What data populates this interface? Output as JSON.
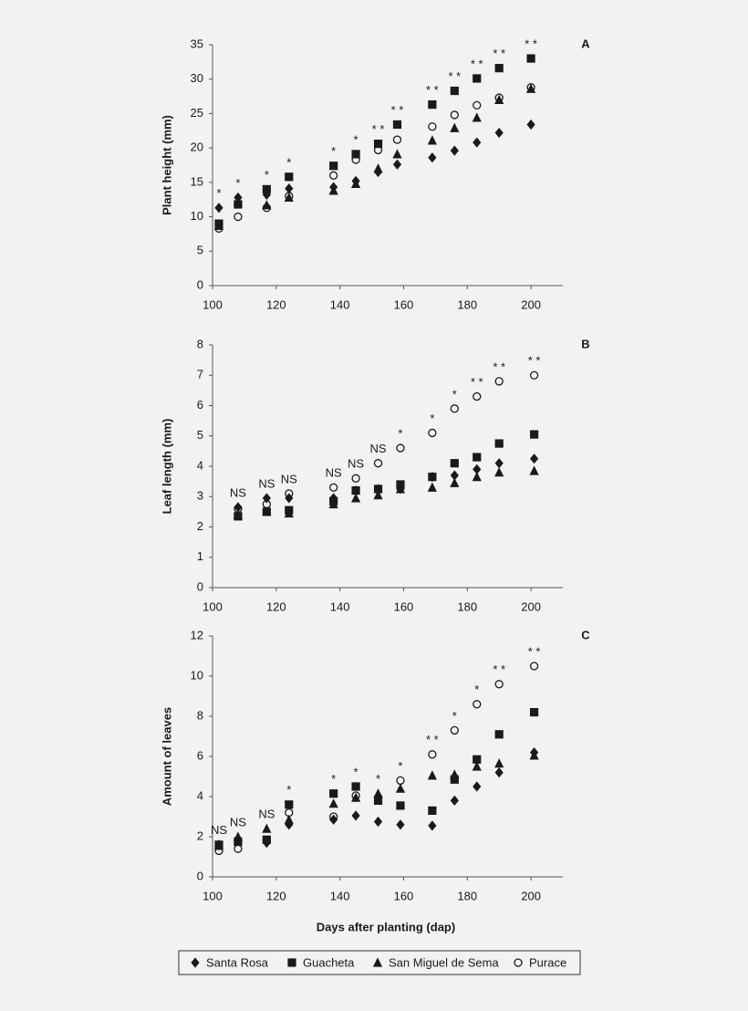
{
  "chart_data": [
    {
      "type": "scatter",
      "panel_label": "A",
      "ylabel": "Plant height (mm)",
      "x": [
        102,
        108,
        117,
        124,
        138,
        145,
        152,
        158,
        169,
        176,
        183,
        190,
        200
      ],
      "xlim": [
        100,
        210
      ],
      "xticks": [
        100,
        120,
        140,
        160,
        180,
        200
      ],
      "ylim": [
        0,
        35
      ],
      "yticks": [
        0,
        5,
        10,
        15,
        20,
        25,
        30,
        35
      ],
      "annotations": [
        "*",
        "*",
        "*",
        "*",
        "*",
        "*",
        "* *",
        "* *",
        "* *",
        "* *",
        "* *",
        "* *",
        "* *"
      ],
      "series": [
        {
          "name": "Santa Rosa",
          "marker": "diamond",
          "color": "#1a1a1a",
          "values": [
            11.3,
            12.8,
            13.2,
            14.1,
            14.3,
            15.2,
            16.5,
            17.6,
            18.6,
            19.6,
            20.8,
            22.2,
            23.4
          ]
        },
        {
          "name": "Guacheta",
          "marker": "square",
          "color": "#1a1a1a",
          "values": [
            9.0,
            11.8,
            14.0,
            15.8,
            17.4,
            19.1,
            20.6,
            23.4,
            26.3,
            28.3,
            30.1,
            31.6,
            33.0
          ]
        },
        {
          "name": "San Miguel de Sema",
          "marker": "triangle",
          "color": "#1a1a1a",
          "values": [
            8.7,
            12.3,
            11.7,
            12.8,
            13.8,
            14.8,
            17.0,
            19.1,
            21.1,
            22.9,
            24.4,
            27.0,
            28.6
          ]
        },
        {
          "name": "Purace",
          "marker": "circle",
          "color": "#1a1a1a",
          "values": [
            8.3,
            10.0,
            11.3,
            13.0,
            16.0,
            18.3,
            19.7,
            21.2,
            23.1,
            24.8,
            26.2,
            27.3,
            28.8
          ]
        }
      ]
    },
    {
      "type": "scatter",
      "panel_label": "B",
      "ylabel": "Leaf length (mm)",
      "x": [
        108,
        117,
        124,
        138,
        145,
        152,
        159,
        169,
        176,
        183,
        190,
        201
      ],
      "xlim": [
        100,
        210
      ],
      "xticks": [
        100,
        120,
        140,
        160,
        180,
        200
      ],
      "ylim": [
        0,
        8
      ],
      "yticks": [
        0,
        1,
        2,
        3,
        4,
        5,
        6,
        7,
        8
      ],
      "annotations": [
        "NS",
        "NS",
        "NS",
        "NS",
        "NS",
        "NS",
        "*",
        "*",
        "*",
        "* *",
        "* *",
        "* *"
      ],
      "series": [
        {
          "name": "Santa Rosa",
          "marker": "diamond",
          "color": "#1a1a1a",
          "values": [
            2.65,
            2.95,
            2.95,
            2.95,
            3.2,
            3.25,
            3.25,
            3.65,
            3.7,
            3.9,
            4.1,
            4.25
          ]
        },
        {
          "name": "Guacheta",
          "marker": "square",
          "color": "#1a1a1a",
          "values": [
            2.35,
            2.5,
            2.55,
            2.85,
            3.2,
            3.25,
            3.4,
            3.65,
            4.1,
            4.3,
            4.75,
            5.05
          ]
        },
        {
          "name": "San Miguel de Sema",
          "marker": "triangle",
          "color": "#1a1a1a",
          "values": [
            2.4,
            2.5,
            2.45,
            2.75,
            2.95,
            3.05,
            3.25,
            3.3,
            3.45,
            3.65,
            3.8,
            3.85
          ]
        },
        {
          "name": "Purace",
          "marker": "circle",
          "color": "#1a1a1a",
          "values": [
            2.6,
            2.75,
            3.1,
            3.3,
            3.6,
            4.1,
            4.6,
            5.1,
            5.9,
            6.3,
            6.8,
            7.0
          ]
        }
      ]
    },
    {
      "type": "scatter",
      "panel_label": "C",
      "ylabel": "Amount of leaves",
      "xlabel": "Days after planting (dap)",
      "x": [
        102,
        108,
        117,
        124,
        138,
        145,
        152,
        159,
        169,
        176,
        183,
        190,
        201
      ],
      "xlim": [
        100,
        210
      ],
      "xticks": [
        100,
        120,
        140,
        160,
        180,
        200
      ],
      "ylim": [
        0,
        12
      ],
      "yticks": [
        0,
        2,
        4,
        6,
        8,
        10,
        12
      ],
      "annotations": [
        "NS",
        "NS",
        "NS",
        "*",
        "*",
        "*",
        "*",
        "*",
        "* *",
        "*",
        "*",
        "* *",
        "* *"
      ],
      "series": [
        {
          "name": "Santa Rosa",
          "marker": "diamond",
          "color": "#1a1a1a",
          "values": [
            1.6,
            1.9,
            1.7,
            2.6,
            2.85,
            3.05,
            2.75,
            2.6,
            2.55,
            3.8,
            4.5,
            5.2,
            6.2
          ]
        },
        {
          "name": "Guacheta",
          "marker": "square",
          "color": "#1a1a1a",
          "values": [
            1.6,
            1.75,
            1.85,
            3.6,
            4.15,
            4.5,
            3.8,
            3.55,
            3.3,
            4.85,
            5.85,
            7.1,
            8.2
          ]
        },
        {
          "name": "San Miguel de Sema",
          "marker": "triangle",
          "color": "#1a1a1a",
          "values": [
            1.55,
            2.0,
            2.4,
            2.85,
            3.65,
            3.95,
            4.15,
            4.4,
            5.05,
            5.1,
            5.5,
            5.65,
            6.05
          ]
        },
        {
          "name": "Purace",
          "marker": "circle",
          "color": "#1a1a1a",
          "values": [
            1.3,
            1.4,
            1.8,
            3.2,
            3.0,
            4.05,
            3.95,
            4.8,
            6.1,
            7.3,
            8.6,
            9.6,
            10.5
          ]
        }
      ]
    }
  ]
}
